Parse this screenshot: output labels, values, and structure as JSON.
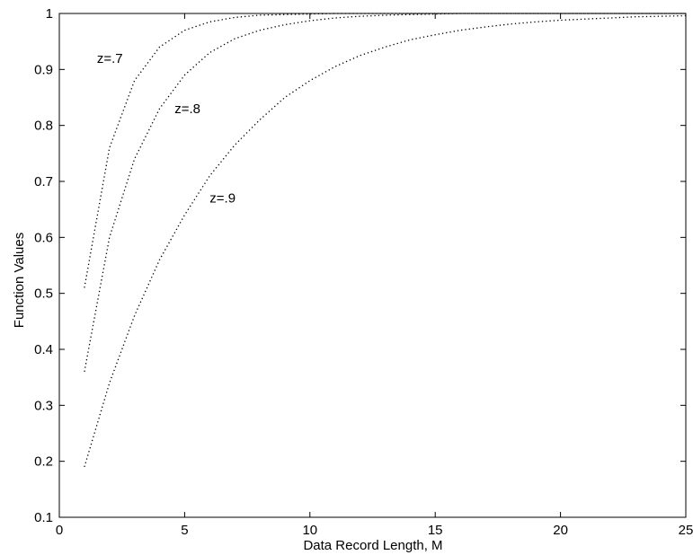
{
  "chart_data": {
    "type": "line",
    "title": "",
    "xlabel": "Data Record Length, M",
    "ylabel": "Function Values",
    "xlim": [
      0,
      25
    ],
    "ylim": [
      0.1,
      1
    ],
    "xticks": [
      0,
      5,
      10,
      15,
      20,
      25
    ],
    "xtick_labels": [
      "0",
      "5",
      "10",
      "15",
      "20",
      "25"
    ],
    "yticks": [
      0.1,
      0.2,
      0.3,
      0.4,
      0.5,
      0.6,
      0.7,
      0.8,
      0.9,
      1
    ],
    "ytick_labels": [
      "0.1",
      "0.2",
      "0.3",
      "0.4",
      "0.5",
      "0.6",
      "0.7",
      "0.8",
      "0.9",
      "1"
    ],
    "grid": false,
    "legend": "none",
    "line_style": "dotted",
    "line_color": "#000000",
    "x": [
      1,
      2,
      3,
      4,
      5,
      6,
      7,
      8,
      9,
      10,
      11,
      12,
      13,
      14,
      15,
      16,
      17,
      18,
      19,
      20,
      21,
      22,
      23,
      24,
      25
    ],
    "series": [
      {
        "values": [
          0.51,
          0.76,
          0.88,
          0.94,
          0.97,
          0.985,
          0.993,
          0.997,
          0.998,
          0.999,
          1.0,
          1.0,
          1.0,
          1.0,
          1.0,
          1.0,
          1.0,
          1.0,
          1.0,
          1.0,
          1.0,
          1.0,
          1.0,
          1.0,
          1.0
        ]
      },
      {
        "values": [
          0.36,
          0.6,
          0.74,
          0.83,
          0.89,
          0.93,
          0.955,
          0.97,
          0.98,
          0.987,
          0.992,
          0.995,
          0.997,
          0.998,
          0.999,
          1.0,
          1.0,
          1.0,
          1.0,
          1.0,
          1.0,
          1.0,
          1.0,
          1.0,
          1.0
        ]
      },
      {
        "values": [
          0.19,
          0.34,
          0.46,
          0.56,
          0.64,
          0.71,
          0.765,
          0.81,
          0.85,
          0.88,
          0.905,
          0.925,
          0.94,
          0.953,
          0.962,
          0.97,
          0.976,
          0.981,
          0.985,
          0.988,
          0.99,
          0.992,
          0.994,
          0.995,
          0.996
        ]
      }
    ],
    "annotations": [
      {
        "text": "z=.7",
        "x": 1.5,
        "y": 0.92
      },
      {
        "text": "z=.8",
        "x": 4.6,
        "y": 0.83
      },
      {
        "text": "z=.9",
        "x": 6.0,
        "y": 0.67
      }
    ]
  }
}
